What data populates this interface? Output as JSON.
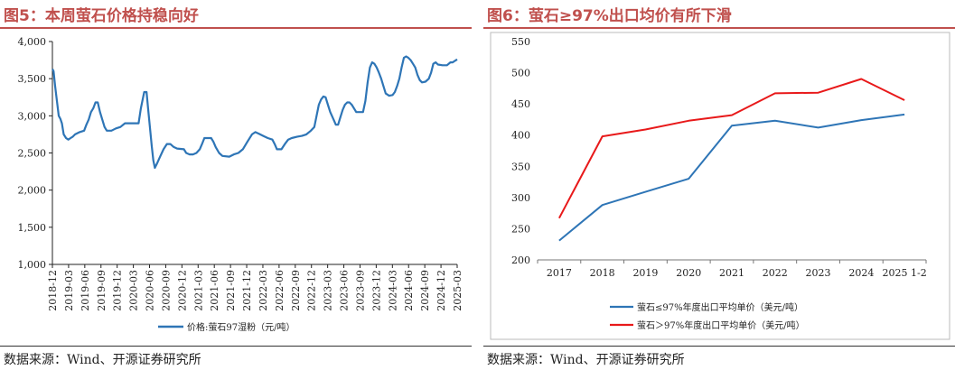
{
  "left": {
    "title": "图5：本周萤石价格持稳向好",
    "source": "数据来源：Wind、开源证券研究所",
    "chart_data": {
      "type": "line",
      "ylim": [
        1000,
        4000
      ],
      "yticks": [
        "1,000",
        "1,500",
        "2,000",
        "2,500",
        "3,000",
        "3,500",
        "4,000"
      ],
      "ytick_values": [
        1000,
        1500,
        2000,
        2500,
        3000,
        3500,
        4000
      ],
      "x_labels": [
        "2018-12",
        "2019-03",
        "2019-06",
        "2019-09",
        "2019-12",
        "2020-03",
        "2020-06",
        "2020-09",
        "2020-12",
        "2021-03",
        "2021-06",
        "2021-09",
        "2021-12",
        "2022-03",
        "2022-06",
        "2022-09",
        "2022-12",
        "2023-03",
        "2023-06",
        "2023-09",
        "2023-12",
        "2024-03",
        "2024-06",
        "2024-09",
        "2024-12",
        "2025-03"
      ],
      "legend_position": "bottom",
      "grid": false,
      "series": [
        {
          "name": "价格:萤石97湿粉（元/吨）",
          "color": "#2e75b6",
          "points": [
            [
              0,
              3630
            ],
            [
              0.05,
              3600
            ],
            [
              0.12,
              3400
            ],
            [
              0.2,
              3200
            ],
            [
              0.28,
              3000
            ],
            [
              0.35,
              2960
            ],
            [
              0.42,
              2900
            ],
            [
              0.5,
              2750
            ],
            [
              0.6,
              2700
            ],
            [
              0.7,
              2680
            ],
            [
              0.8,
              2700
            ],
            [
              0.9,
              2720
            ],
            [
              1.0,
              2750
            ],
            [
              1.2,
              2780
            ],
            [
              1.4,
              2800
            ],
            [
              1.5,
              2880
            ],
            [
              1.6,
              2950
            ],
            [
              1.7,
              3050
            ],
            [
              1.8,
              3100
            ],
            [
              1.9,
              3180
            ],
            [
              2.0,
              3180
            ],
            [
              2.1,
              3050
            ],
            [
              2.2,
              2950
            ],
            [
              2.3,
              2850
            ],
            [
              2.4,
              2800
            ],
            [
              2.6,
              2800
            ],
            [
              2.8,
              2830
            ],
            [
              3.0,
              2850
            ],
            [
              3.2,
              2900
            ],
            [
              3.6,
              2900
            ],
            [
              3.8,
              2900
            ],
            [
              3.9,
              3100
            ],
            [
              4.0,
              3250
            ],
            [
              4.05,
              3320
            ],
            [
              4.15,
              3320
            ],
            [
              4.22,
              3100
            ],
            [
              4.3,
              2850
            ],
            [
              4.38,
              2600
            ],
            [
              4.45,
              2400
            ],
            [
              4.52,
              2300
            ],
            [
              4.6,
              2350
            ],
            [
              4.75,
              2450
            ],
            [
              4.9,
              2550
            ],
            [
              5.05,
              2620
            ],
            [
              5.2,
              2620
            ],
            [
              5.35,
              2580
            ],
            [
              5.5,
              2560
            ],
            [
              5.8,
              2550
            ],
            [
              5.9,
              2500
            ],
            [
              6.05,
              2480
            ],
            [
              6.2,
              2480
            ],
            [
              6.35,
              2500
            ],
            [
              6.5,
              2550
            ],
            [
              6.6,
              2620
            ],
            [
              6.7,
              2700
            ],
            [
              7.0,
              2700
            ],
            [
              7.1,
              2650
            ],
            [
              7.2,
              2580
            ],
            [
              7.35,
              2500
            ],
            [
              7.5,
              2460
            ],
            [
              7.8,
              2450
            ],
            [
              8.0,
              2480
            ],
            [
              8.2,
              2500
            ],
            [
              8.4,
              2550
            ],
            [
              8.6,
              2650
            ],
            [
              8.8,
              2750
            ],
            [
              8.95,
              2780
            ],
            [
              9.1,
              2760
            ],
            [
              9.3,
              2730
            ],
            [
              9.5,
              2700
            ],
            [
              9.7,
              2680
            ],
            [
              9.8,
              2620
            ],
            [
              9.9,
              2550
            ],
            [
              10.1,
              2550
            ],
            [
              10.25,
              2620
            ],
            [
              10.4,
              2680
            ],
            [
              10.55,
              2700
            ],
            [
              10.8,
              2720
            ],
            [
              11.0,
              2730
            ],
            [
              11.2,
              2750
            ],
            [
              11.4,
              2800
            ],
            [
              11.55,
              2850
            ],
            [
              11.65,
              3000
            ],
            [
              11.75,
              3150
            ],
            [
              11.85,
              3220
            ],
            [
              11.95,
              3260
            ],
            [
              12.05,
              3250
            ],
            [
              12.15,
              3150
            ],
            [
              12.25,
              3050
            ],
            [
              12.4,
              2950
            ],
            [
              12.5,
              2880
            ],
            [
              12.6,
              2880
            ],
            [
              12.7,
              2980
            ],
            [
              12.8,
              3080
            ],
            [
              12.9,
              3150
            ],
            [
              13.0,
              3180
            ],
            [
              13.1,
              3180
            ],
            [
              13.2,
              3150
            ],
            [
              13.3,
              3100
            ],
            [
              13.4,
              3050
            ],
            [
              13.5,
              3050
            ],
            [
              13.7,
              3050
            ],
            [
              13.8,
              3200
            ],
            [
              13.9,
              3450
            ],
            [
              14.0,
              3650
            ],
            [
              14.1,
              3720
            ],
            [
              14.2,
              3700
            ],
            [
              14.3,
              3650
            ],
            [
              14.4,
              3580
            ],
            [
              14.5,
              3500
            ],
            [
              14.6,
              3400
            ],
            [
              14.7,
              3300
            ],
            [
              14.85,
              3270
            ],
            [
              15.0,
              3280
            ],
            [
              15.1,
              3320
            ],
            [
              15.2,
              3400
            ],
            [
              15.3,
              3500
            ],
            [
              15.4,
              3650
            ],
            [
              15.5,
              3780
            ],
            [
              15.6,
              3800
            ],
            [
              15.7,
              3780
            ],
            [
              15.8,
              3750
            ],
            [
              15.9,
              3700
            ],
            [
              16.0,
              3650
            ],
            [
              16.1,
              3550
            ],
            [
              16.2,
              3480
            ],
            [
              16.3,
              3450
            ],
            [
              16.45,
              3460
            ],
            [
              16.6,
              3500
            ],
            [
              16.7,
              3580
            ],
            [
              16.8,
              3700
            ],
            [
              16.9,
              3720
            ],
            [
              17.0,
              3690
            ],
            [
              17.2,
              3680
            ],
            [
              17.4,
              3680
            ],
            [
              17.55,
              3720
            ],
            [
              17.65,
              3720
            ],
            [
              17.75,
              3740
            ],
            [
              17.85,
              3760
            ]
          ]
        }
      ]
    }
  },
  "right": {
    "title": "图6：萤石≥97%出口均价有所下滑",
    "source": "数据来源：Wind、开源证券研究所",
    "chart_data": {
      "type": "line",
      "categories": [
        "2017",
        "2018",
        "2019",
        "2020",
        "2021",
        "2022",
        "2023",
        "2024",
        "2025 1-2"
      ],
      "ylim": [
        200,
        550
      ],
      "yticks": [
        "200",
        "250",
        "300",
        "350",
        "400",
        "450",
        "500",
        "550"
      ],
      "ytick_values": [
        200,
        250,
        300,
        350,
        400,
        450,
        500,
        550
      ],
      "legend_position": "bottom",
      "grid": false,
      "series": [
        {
          "name": "萤石≤97%年度出口平均单价（美元/吨）",
          "color": "#2e75b6",
          "values": [
            231,
            288,
            309,
            330,
            415,
            423,
            412,
            424,
            433
          ]
        },
        {
          "name": "萤石＞97%年度出口平均单价（美元/吨）",
          "color": "#e8191a",
          "values": [
            267,
            398,
            409,
            423,
            432,
            467,
            468,
            490,
            456
          ]
        }
      ]
    }
  }
}
